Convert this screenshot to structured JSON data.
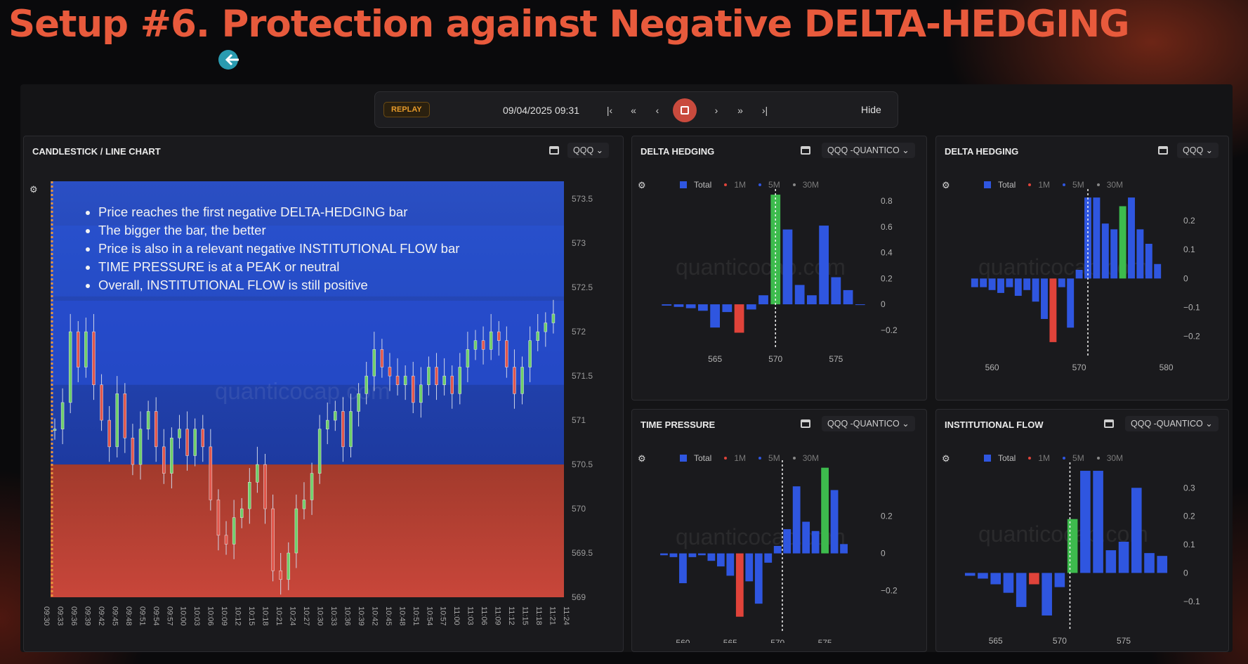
{
  "slide": {
    "title": "Setup #6. Protection against Negative DELTA-HEDGING"
  },
  "replay": {
    "badge": "REPLAY",
    "datetime": "09/04/2025 09:31",
    "controls": [
      "|‹",
      "«",
      "‹",
      "›",
      "»",
      "›|"
    ],
    "hide_label": "Hide"
  },
  "main_chart": {
    "title": "CANDLESTICK / LINE CHART",
    "symbol": "QQQ",
    "price_ticks": [
      "573.5",
      "573",
      "572.5",
      "572",
      "571.5",
      "571",
      "570.5",
      "570",
      "569.5",
      "569"
    ],
    "time_ticks": [
      "09:30",
      "09:33",
      "09:36",
      "09:39",
      "09:42",
      "09:45",
      "09:48",
      "09:51",
      "09:54",
      "09:57",
      "10:00",
      "10:03",
      "10:06",
      "10:09",
      "10:12",
      "10:15",
      "10:18",
      "10:21",
      "10:24",
      "10:27",
      "10:30",
      "10:33",
      "10:36",
      "10:39",
      "10:42",
      "10:45",
      "10:48",
      "10:51",
      "10:54",
      "10:57",
      "11:00",
      "11:03",
      "11:06",
      "11:09",
      "11:12",
      "11:15",
      "11:18",
      "11:21",
      "11:24"
    ],
    "bullets": [
      "Price reaches the first negative DELTA-HEDGING bar",
      "The bigger the bar, the better",
      "Price is also in a relevant negative INSTITUTIONAL FLOW bar",
      "TIME PRESSURE is at a PEAK or neutral",
      "Overall, INSTITUTIONAL FLOW is still positive"
    ],
    "watermark": "quanticocap.com",
    "chart_data": {
      "type": "candlestick",
      "ylim": [
        569,
        573.7
      ],
      "close_series": [
        570.9,
        571.2,
        572.0,
        571.6,
        572.0,
        571.4,
        571.0,
        570.7,
        571.3,
        570.8,
        570.5,
        570.9,
        571.1,
        570.7,
        570.4,
        570.8,
        570.9,
        570.6,
        570.9,
        570.7,
        570.1,
        569.7,
        569.6,
        569.9,
        570.0,
        570.3,
        570.5,
        570.0,
        569.3,
        569.2,
        569.5,
        570.0,
        570.1,
        570.4,
        570.9,
        571.0,
        571.1,
        570.7,
        571.1,
        571.3,
        571.5,
        571.8,
        571.6,
        571.5,
        571.4,
        571.5,
        571.2,
        571.4,
        571.6,
        571.4,
        571.5,
        571.3,
        571.6,
        571.8,
        571.9,
        571.8,
        572.0,
        571.9,
        571.6,
        571.3,
        571.6,
        571.9,
        572.0,
        572.1,
        572.2
      ]
    }
  },
  "delta_hedging_left": {
    "title": "DELTA HEDGING",
    "symbol": "QQQ -QUANTICO",
    "legend": [
      "Total",
      "1M",
      "5M",
      "30M"
    ],
    "watermark": "quanticocap.com",
    "chart_data": {
      "type": "bar",
      "x": [
        561,
        562,
        563,
        564,
        565,
        566,
        567,
        568,
        569,
        570,
        571,
        572,
        573,
        574,
        575,
        576,
        577
      ],
      "values": [
        -0.01,
        -0.02,
        -0.03,
        -0.05,
        -0.18,
        -0.06,
        -0.22,
        -0.04,
        0.07,
        0.85,
        0.58,
        0.15,
        0.07,
        0.61,
        0.21,
        0.11,
        0.0
      ],
      "highlight_positive_x": 570,
      "highlight_negative_x": 567,
      "xticks": [
        "565",
        "570",
        "575"
      ],
      "yticks": [
        "0.8",
        "0.6",
        "0.4",
        "0.2",
        "0",
        "−0.2"
      ],
      "ylim": [
        -0.25,
        0.85
      ],
      "xlim": [
        560,
        578
      ],
      "spot": 570
    }
  },
  "delta_hedging_right": {
    "title": "DELTA HEDGING",
    "symbol": "QQQ",
    "legend": [
      "Total",
      "1M",
      "5M",
      "30M"
    ],
    "watermark": "quanticocap.com",
    "chart_data": {
      "type": "bar",
      "x": [
        558,
        559,
        560,
        561,
        562,
        563,
        564,
        565,
        566,
        567,
        568,
        569,
        570,
        571,
        572,
        573,
        574,
        575,
        576,
        577,
        578,
        579
      ],
      "values": [
        -0.03,
        -0.03,
        -0.04,
        -0.05,
        -0.03,
        -0.06,
        -0.04,
        -0.08,
        -0.14,
        -0.22,
        -0.03,
        -0.17,
        0.03,
        0.28,
        0.28,
        0.19,
        0.17,
        0.25,
        0.28,
        0.17,
        0.12,
        0.05
      ],
      "highlight_positive_x": 575,
      "highlight_negative_x": 567,
      "xticks": [
        "560",
        "570",
        "580"
      ],
      "yticks": [
        "0.2",
        "0.1",
        "0",
        "−0.1",
        "−0.2"
      ],
      "ylim": [
        -0.23,
        0.29
      ],
      "xlim": [
        556,
        581
      ],
      "spot": 571
    }
  },
  "time_pressure": {
    "title": "TIME PRESSURE",
    "symbol": "QQQ -QUANTICO",
    "legend": [
      "Total",
      "1M",
      "5M",
      "30M"
    ],
    "watermark": "quanticocap.com",
    "chart_data": {
      "type": "bar",
      "x": [
        558,
        559,
        560,
        561,
        562,
        563,
        564,
        565,
        566,
        567,
        568,
        569,
        570,
        571,
        572,
        573,
        574,
        575,
        576,
        577
      ],
      "values": [
        -0.01,
        -0.02,
        -0.16,
        -0.02,
        -0.01,
        -0.04,
        -0.07,
        -0.12,
        -0.34,
        -0.15,
        -0.27,
        -0.05,
        0.04,
        0.13,
        0.36,
        0.17,
        0.12,
        0.46,
        0.34,
        0.05
      ],
      "highlight_positive_x": 575,
      "highlight_negative_x": 566,
      "xticks": [
        "560",
        "565",
        "570",
        "575"
      ],
      "yticks": [
        "0.2",
        "0",
        "−0.2"
      ],
      "ylim": [
        -0.36,
        0.47
      ],
      "xlim": [
        557,
        580
      ],
      "spot": 570.5
    }
  },
  "institutional_flow": {
    "title": "INSTITUTIONAL FLOW",
    "symbol": "QQQ -QUANTICO",
    "legend": [
      "Total",
      "1M",
      "5M",
      "30M"
    ],
    "watermark": "quanticocap.com",
    "chart_data": {
      "type": "bar",
      "x": [
        563,
        564,
        565,
        566,
        567,
        568,
        569,
        570,
        571,
        572,
        573,
        574,
        575,
        576,
        577,
        578
      ],
      "values": [
        -0.01,
        -0.02,
        -0.04,
        -0.07,
        -0.12,
        -0.04,
        -0.15,
        -0.05,
        0.19,
        0.36,
        0.36,
        0.08,
        0.11,
        0.3,
        0.07,
        0.06
      ],
      "highlight_positive_x": 571,
      "highlight_negative_x": 568,
      "xticks": [
        "565",
        "570",
        "575"
      ],
      "yticks": [
        "0.3",
        "0.2",
        "0.1",
        "0",
        "−0.1"
      ],
      "ylim": [
        -0.16,
        0.37
      ],
      "xlim": [
        562,
        579
      ],
      "spot": 570.8
    }
  },
  "colors": {
    "positive": "#2f56e0",
    "negative": "#e0433a",
    "peak": "#3dbb4d",
    "accent": "#e85a3c"
  }
}
